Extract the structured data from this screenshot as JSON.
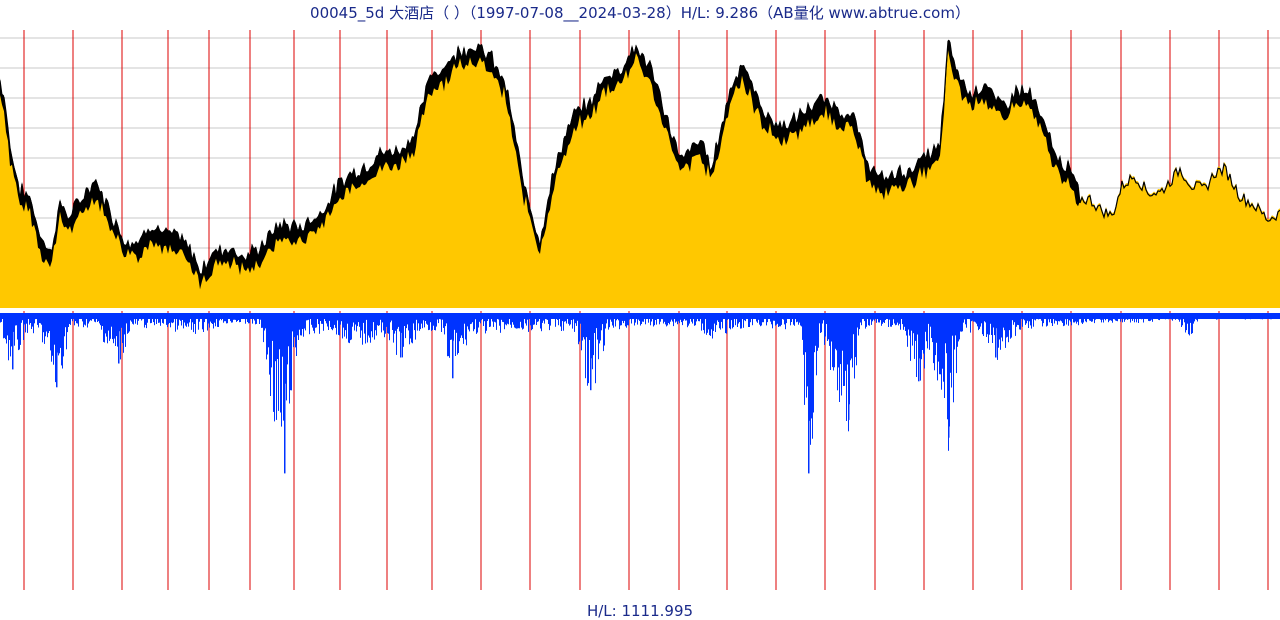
{
  "chart_data": {
    "type": "area",
    "title": "00045_5d 大酒店（ ）（1997-07-08__2024-03-28）H/L: 9.286（AB量化  www.abtrue.com）",
    "bottom_label": "H/L: 1111.995",
    "colors": {
      "price_fill": "#ffc800",
      "price_band": "#000000",
      "volume": "#0033ff",
      "grid_h": "#c8c8c8",
      "year_line": "#dd0000",
      "separator": "#ffffff"
    },
    "price_scale": {
      "low": 1.0,
      "high": 9.286
    },
    "price_series": [
      [
        0,
        7.6
      ],
      [
        5,
        7.0
      ],
      [
        10,
        5.6
      ],
      [
        20,
        4.3
      ],
      [
        30,
        4.1
      ],
      [
        40,
        3.0
      ],
      [
        50,
        2.4
      ],
      [
        60,
        3.9
      ],
      [
        70,
        3.5
      ],
      [
        80,
        4.0
      ],
      [
        95,
        4.6
      ],
      [
        110,
        3.7
      ],
      [
        125,
        2.8
      ],
      [
        140,
        2.8
      ],
      [
        150,
        3.3
      ],
      [
        165,
        3.0
      ],
      [
        180,
        2.9
      ],
      [
        195,
        2.3
      ],
      [
        200,
        1.9
      ],
      [
        215,
        2.5
      ],
      [
        230,
        2.6
      ],
      [
        245,
        2.3
      ],
      [
        260,
        2.6
      ],
      [
        280,
        3.3
      ],
      [
        300,
        3.2
      ],
      [
        320,
        3.6
      ],
      [
        335,
        4.3
      ],
      [
        350,
        4.8
      ],
      [
        365,
        5.0
      ],
      [
        380,
        5.4
      ],
      [
        400,
        5.5
      ],
      [
        415,
        6.0
      ],
      [
        430,
        7.7
      ],
      [
        445,
        8.0
      ],
      [
        460,
        8.5
      ],
      [
        475,
        8.6
      ],
      [
        490,
        8.3
      ],
      [
        505,
        7.5
      ],
      [
        515,
        6.0
      ],
      [
        522,
        4.7
      ],
      [
        530,
        3.9
      ],
      [
        540,
        2.8
      ],
      [
        548,
        4.1
      ],
      [
        560,
        5.5
      ],
      [
        575,
        6.6
      ],
      [
        590,
        6.9
      ],
      [
        605,
        7.7
      ],
      [
        620,
        7.9
      ],
      [
        635,
        8.6
      ],
      [
        650,
        8.0
      ],
      [
        662,
        6.9
      ],
      [
        672,
        6.0
      ],
      [
        680,
        5.2
      ],
      [
        690,
        5.5
      ],
      [
        700,
        5.8
      ],
      [
        712,
        5.0
      ],
      [
        722,
        6.3
      ],
      [
        732,
        7.5
      ],
      [
        742,
        8.1
      ],
      [
        755,
        7.2
      ],
      [
        765,
        6.6
      ],
      [
        780,
        6.2
      ],
      [
        795,
        6.4
      ],
      [
        810,
        6.8
      ],
      [
        825,
        7.0
      ],
      [
        840,
        6.7
      ],
      [
        855,
        6.4
      ],
      [
        865,
        5.3
      ],
      [
        880,
        4.6
      ],
      [
        895,
        4.8
      ],
      [
        910,
        4.9
      ],
      [
        925,
        5.3
      ],
      [
        940,
        5.6
      ],
      [
        948,
        8.7
      ],
      [
        958,
        7.8
      ],
      [
        970,
        7.2
      ],
      [
        985,
        7.5
      ],
      [
        995,
        7.0
      ],
      [
        1005,
        6.8
      ],
      [
        1015,
        7.3
      ],
      [
        1030,
        7.2
      ],
      [
        1045,
        6.2
      ],
      [
        1058,
        5.2
      ],
      [
        1068,
        5.0
      ],
      [
        1078,
        4.3
      ],
      [
        1090,
        4.3
      ],
      [
        1100,
        4.0
      ],
      [
        1112,
        3.8
      ],
      [
        1122,
        4.7
      ],
      [
        1135,
        5.0
      ],
      [
        1148,
        4.5
      ],
      [
        1160,
        4.5
      ],
      [
        1172,
        4.9
      ],
      [
        1180,
        5.2
      ],
      [
        1192,
        4.7
      ],
      [
        1205,
        4.6
      ],
      [
        1215,
        5.1
      ],
      [
        1225,
        5.2
      ],
      [
        1240,
        4.4
      ],
      [
        1255,
        4.1
      ],
      [
        1268,
        3.7
      ],
      [
        1280,
        3.9
      ]
    ],
    "volume_series": [
      [
        0,
        0.05
      ],
      [
        12,
        0.19
      ],
      [
        25,
        0.06
      ],
      [
        40,
        0.07
      ],
      [
        56,
        0.25
      ],
      [
        70,
        0.05
      ],
      [
        95,
        0.04
      ],
      [
        118,
        0.17
      ],
      [
        130,
        0.05
      ],
      [
        160,
        0.04
      ],
      [
        190,
        0.07
      ],
      [
        210,
        0.05
      ],
      [
        230,
        0.03
      ],
      [
        260,
        0.04
      ],
      [
        284,
        0.54
      ],
      [
        290,
        0.26
      ],
      [
        300,
        0.08
      ],
      [
        330,
        0.05
      ],
      [
        345,
        0.09
      ],
      [
        360,
        0.1
      ],
      [
        385,
        0.07
      ],
      [
        400,
        0.15
      ],
      [
        420,
        0.06
      ],
      [
        440,
        0.05
      ],
      [
        452,
        0.22
      ],
      [
        470,
        0.06
      ],
      [
        490,
        0.07
      ],
      [
        510,
        0.05
      ],
      [
        530,
        0.06
      ],
      [
        555,
        0.05
      ],
      [
        575,
        0.06
      ],
      [
        590,
        0.26
      ],
      [
        610,
        0.05
      ],
      [
        650,
        0.04
      ],
      [
        680,
        0.04
      ],
      [
        700,
        0.05
      ],
      [
        715,
        0.09
      ],
      [
        730,
        0.05
      ],
      [
        760,
        0.04
      ],
      [
        780,
        0.05
      ],
      [
        800,
        0.04
      ],
      [
        808,
        0.54
      ],
      [
        820,
        0.06
      ],
      [
        848,
        0.36
      ],
      [
        860,
        0.05
      ],
      [
        880,
        0.04
      ],
      [
        900,
        0.05
      ],
      [
        918,
        0.23
      ],
      [
        930,
        0.1
      ],
      [
        948,
        0.42
      ],
      [
        960,
        0.07
      ],
      [
        980,
        0.05
      ],
      [
        995,
        0.15
      ],
      [
        1020,
        0.05
      ],
      [
        1050,
        0.04
      ],
      [
        1080,
        0.04
      ],
      [
        1100,
        0.03
      ],
      [
        1140,
        0.03
      ],
      [
        1170,
        0.02
      ],
      [
        1190,
        0.07
      ],
      [
        1200,
        0.02
      ],
      [
        1240,
        0.02
      ],
      [
        1280,
        0.02
      ]
    ]
  }
}
